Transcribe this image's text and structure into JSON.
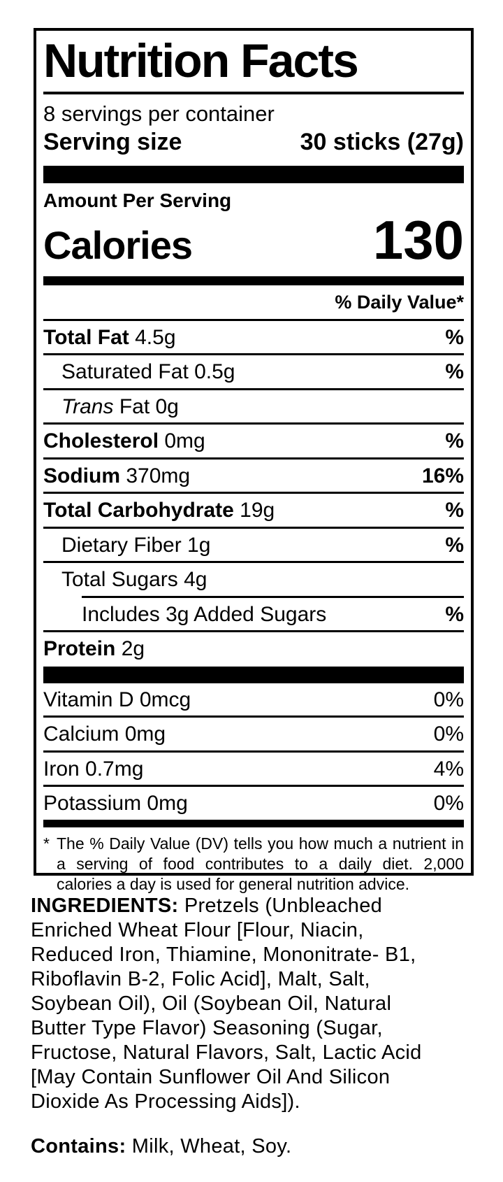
{
  "label": {
    "title": "Nutrition Facts",
    "servings_per_container": "8 servings per container",
    "serving_size": {
      "label": "Serving size",
      "value": "30 sticks (27g)"
    },
    "amount_per_serving": "Amount Per Serving",
    "calories": {
      "label": "Calories",
      "value": "130"
    },
    "daily_value_header": "% Daily Value*",
    "rows": [
      {
        "bold": "Total Fat",
        "rest": "4.5g",
        "dv": "%"
      },
      {
        "rest": "Saturated Fat 0.5g",
        "dv": "%"
      },
      {
        "italic": "Trans",
        "rest": "Fat 0g",
        "dv": ""
      },
      {
        "bold": "Cholesterol",
        "rest": "0mg",
        "dv": "%"
      },
      {
        "bold": "Sodium",
        "rest": "370mg",
        "dv": "16%"
      },
      {
        "bold": "Total Carbohydrate",
        "rest": "19g",
        "dv": "%"
      },
      {
        "rest": "Dietary Fiber 1g",
        "dv": "%"
      },
      {
        "rest": "Total Sugars 4g",
        "dv": ""
      },
      {
        "rest": "Includes 3g Added Sugars",
        "dv": "%"
      },
      {
        "bold": "Protein",
        "rest": "2g",
        "dv": ""
      }
    ],
    "micronutrients": [
      {
        "name": "Vitamin D 0mcg",
        "dv": "0%"
      },
      {
        "name": "Calcium 0mg",
        "dv": "0%"
      },
      {
        "name": "Iron 0.7mg",
        "dv": "4%"
      },
      {
        "name": "Potassium 0mg",
        "dv": "0%"
      }
    ],
    "footnote": {
      "marker": "*",
      "text": "The % Daily Value (DV) tells you how much a nutrient in a serving of food contributes to a daily diet. 2,000 calories a day is used for general nutrition advice."
    },
    "colors": {
      "ink": "#000000",
      "background": "#ffffff"
    }
  },
  "ingredients": {
    "heading": "INGREDIENTS:",
    "lines": [
      "Pretzels (Unbleached",
      "Enriched Wheat Flour [Flour, Niacin,",
      "Reduced Iron, Thiamine, Mononitrate- B1,",
      "Riboflavin B-2, Folic Acid], Malt, Salt,",
      "Soybean Oil), Oil (Soybean Oil, Natural",
      "Butter Type Flavor) Seasoning (Sugar,",
      "Fructose, Natural Flavors, Salt, Lactic Acid",
      "[May Contain Sunflower Oil And Silicon",
      "Dioxide As Processing Aids])."
    ]
  },
  "contains": {
    "heading": "Contains:",
    "text": "Milk, Wheat, Soy."
  }
}
